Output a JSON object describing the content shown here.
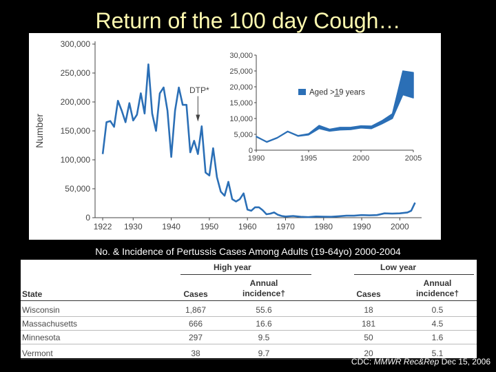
{
  "slide": {
    "title": "Return of the 100 day Cough…",
    "table_caption": "No. & Incidence of Pertussis Cases Among Adults (19-64yo) 2000-2004",
    "credit_prefix": "CDC: ",
    "credit_journal": "MMWR Rec&Rep",
    "credit_suffix": " Dec 15, 2006"
  },
  "chart_data": [
    {
      "type": "line",
      "ylabel": "Number",
      "annotation": "DTP*",
      "annotation_x": 1947,
      "xlim": [
        1920,
        2005
      ],
      "ylim": [
        0,
        300000
      ],
      "x_ticks": [
        "1922",
        "1930",
        "1940",
        "1950",
        "1960",
        "1970",
        "1980",
        "1990",
        "2000"
      ],
      "x_tick_values": [
        1922,
        1930,
        1940,
        1950,
        1960,
        1970,
        1980,
        1990,
        2000
      ],
      "y_ticks": [
        "0",
        "50,000",
        "100,000",
        "150,000",
        "200,000",
        "250,000",
        "300,000"
      ],
      "y_tick_values": [
        0,
        50000,
        100000,
        150000,
        200000,
        250000,
        300000
      ],
      "series": [
        {
          "color": "#2b6fb6",
          "x": [
            1922,
            1923,
            1924,
            1925,
            1926,
            1927,
            1928,
            1929,
            1930,
            1931,
            1932,
            1933,
            1934,
            1935,
            1936,
            1937,
            1938,
            1939,
            1940,
            1941,
            1942,
            1943,
            1944,
            1945,
            1946,
            1947,
            1948,
            1949,
            1950,
            1951,
            1952,
            1953,
            1954,
            1955,
            1956,
            1957,
            1958,
            1959,
            1960,
            1961,
            1962,
            1963,
            1964,
            1965,
            1966,
            1967,
            1968,
            1969,
            1970,
            1972,
            1974,
            1976,
            1978,
            1980,
            1982,
            1984,
            1986,
            1988,
            1990,
            1992,
            1994,
            1996,
            1998,
            2000,
            2002,
            2003,
            2004
          ],
          "y": [
            110000,
            165000,
            167000,
            157000,
            202000,
            185000,
            165000,
            198000,
            168000,
            178000,
            215000,
            180000,
            265000,
            180000,
            150000,
            215000,
            225000,
            185000,
            105000,
            185000,
            225000,
            195000,
            195000,
            113000,
            133000,
            110000,
            158000,
            78000,
            73000,
            120000,
            70000,
            45000,
            38000,
            62000,
            32000,
            28000,
            32000,
            42000,
            14000,
            12000,
            18000,
            18000,
            13000,
            6000,
            7000,
            9000,
            5000,
            3000,
            2000,
            3000,
            1500,
            1000,
            2000,
            1700,
            1500,
            2500,
            3500,
            3500,
            4500,
            4000,
            4500,
            7500,
            7000,
            7500,
            9000,
            12000,
            26000
          ]
        }
      ]
    },
    {
      "type": "area",
      "legend": [
        "Aged >19 years"
      ],
      "xlim": [
        1990,
        2005
      ],
      "ylim": [
        0,
        30000
      ],
      "x_ticks": [
        "1990",
        "1995",
        "2000",
        "2005"
      ],
      "x_tick_values": [
        1990,
        1995,
        2000,
        2005
      ],
      "y_ticks": [
        "0",
        "5,000",
        "10,000",
        "15,000",
        "20,000",
        "25,000",
        "30,000"
      ],
      "y_tick_values": [
        0,
        5000,
        10000,
        15000,
        20000,
        25000,
        30000
      ],
      "series": [
        {
          "name": "Aged >19 years",
          "color": "#2b6fb6",
          "x": [
            1990,
            1991,
            1992,
            1993,
            1994,
            1995,
            1996,
            1997,
            1998,
            1999,
            2000,
            2001,
            2002,
            2003,
            2004,
            2005
          ],
          "low": [
            4200,
            2500,
            3800,
            5800,
            4400,
            4800,
            6800,
            6000,
            6400,
            6500,
            7000,
            6800,
            8300,
            10000,
            17500,
            16500
          ],
          "high": [
            4400,
            2700,
            4000,
            6000,
            4600,
            5200,
            7800,
            6600,
            7200,
            7200,
            7700,
            7600,
            9300,
            11500,
            25000,
            24500
          ]
        }
      ]
    }
  ],
  "table": {
    "group_high": "High year",
    "group_low": "Low year",
    "col_state": "State",
    "col_cases": "Cases",
    "col_annual": "Annual",
    "col_incidence": "incidence†",
    "rows": [
      {
        "state": "Wisconsin",
        "high_cases": "1,867",
        "high_inc": "55.6",
        "low_cases": "18",
        "low_inc": "0.5"
      },
      {
        "state": "Massachusetts",
        "high_cases": "666",
        "high_inc": "16.6",
        "low_cases": "181",
        "low_inc": "4.5"
      },
      {
        "state": "Minnesota",
        "high_cases": "297",
        "high_inc": "9.5",
        "low_cases": "50",
        "low_inc": "1.6"
      },
      {
        "state": "Vermont",
        "high_cases": "38",
        "high_inc": "9.7",
        "low_cases": "20",
        "low_inc": "5.1"
      }
    ]
  }
}
